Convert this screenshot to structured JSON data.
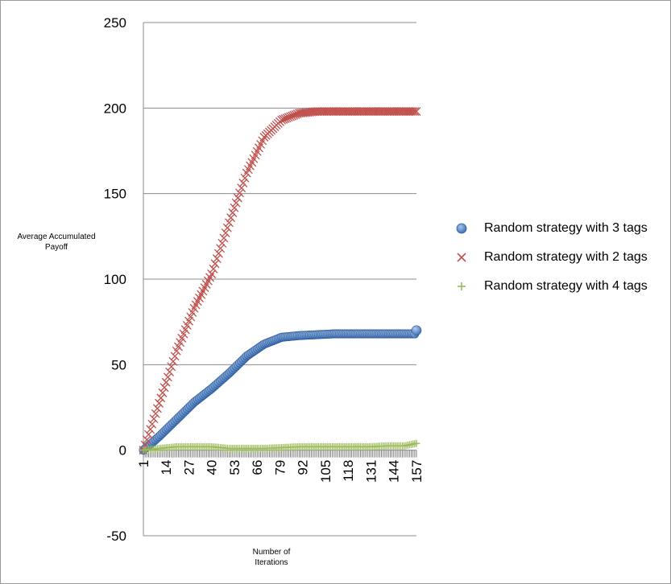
{
  "chart_data": {
    "type": "scatter",
    "title": "",
    "xlabel": "Number of Iterations",
    "xlabel_lines": [
      "Number of",
      "Iterations"
    ],
    "ylabel": "Average Accumulated Payoff",
    "ylabel_lines": [
      "Average Accumulated",
      "Payoff"
    ],
    "ylim": [
      -50,
      250
    ],
    "yticks": [
      -50,
      0,
      50,
      100,
      150,
      200,
      250
    ],
    "xlim": [
      1,
      157
    ],
    "xticks": [
      1,
      14,
      27,
      40,
      53,
      66,
      79,
      92,
      105,
      118,
      131,
      144,
      157
    ],
    "grid": "horizontal",
    "legend_position": "right",
    "series": [
      {
        "name": "Random strategy with 3 tags",
        "marker": "circle",
        "color": "#4f81bd",
        "points": [
          [
            1,
            0
          ],
          [
            10,
            8
          ],
          [
            20,
            18
          ],
          [
            30,
            28
          ],
          [
            40,
            36
          ],
          [
            50,
            45
          ],
          [
            60,
            55
          ],
          [
            70,
            62
          ],
          [
            80,
            66
          ],
          [
            90,
            67
          ],
          [
            100,
            67.5
          ],
          [
            110,
            68
          ],
          [
            120,
            68
          ],
          [
            130,
            68
          ],
          [
            140,
            68
          ],
          [
            150,
            68
          ],
          [
            156,
            68
          ],
          [
            157,
            70
          ]
        ]
      },
      {
        "name": "Random strategy with 2 tags",
        "marker": "x",
        "color": "#c0504d",
        "points": [
          [
            1,
            0
          ],
          [
            20,
            58
          ],
          [
            30,
            83
          ],
          [
            40,
            103
          ],
          [
            50,
            133
          ],
          [
            60,
            162
          ],
          [
            70,
            183
          ],
          [
            80,
            193
          ],
          [
            90,
            197
          ],
          [
            100,
            198
          ],
          [
            120,
            198
          ],
          [
            140,
            198
          ],
          [
            157,
            198
          ]
        ]
      },
      {
        "name": "Random strategy with 4 tags",
        "marker": "plus",
        "color": "#9bbb59",
        "points": [
          [
            1,
            0
          ],
          [
            10,
            1
          ],
          [
            20,
            2
          ],
          [
            30,
            2
          ],
          [
            40,
            2
          ],
          [
            50,
            1
          ],
          [
            60,
            1
          ],
          [
            70,
            1
          ],
          [
            80,
            1.5
          ],
          [
            90,
            2
          ],
          [
            100,
            2
          ],
          [
            110,
            2
          ],
          [
            120,
            2
          ],
          [
            130,
            2
          ],
          [
            140,
            2.5
          ],
          [
            150,
            2.5
          ],
          [
            157,
            4
          ]
        ]
      }
    ]
  }
}
